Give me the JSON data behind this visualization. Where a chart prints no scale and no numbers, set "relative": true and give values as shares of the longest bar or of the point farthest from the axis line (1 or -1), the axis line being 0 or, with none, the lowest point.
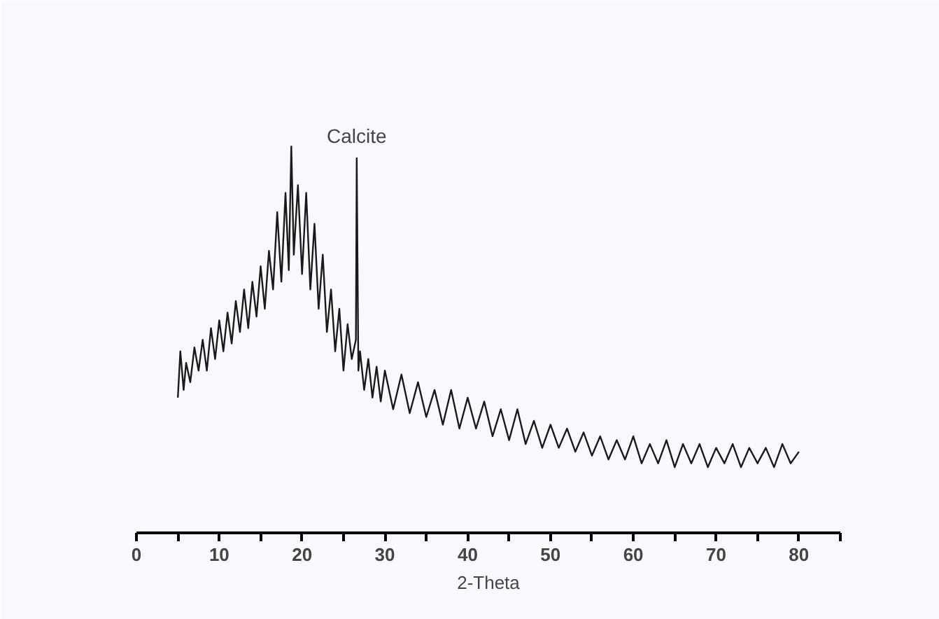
{
  "chart_data": {
    "type": "line",
    "relative": true,
    "xlabel": "2-Theta",
    "xlim": [
      0,
      85
    ],
    "xticks": [
      0,
      {
        "value": 5,
        "label": null
      },
      10,
      {
        "value": 15,
        "label": null
      },
      20,
      {
        "value": 25,
        "label": null
      },
      30,
      {
        "value": 35,
        "label": null
      },
      40,
      {
        "value": 45,
        "label": null
      },
      50,
      {
        "value": 55,
        "label": null
      },
      60,
      {
        "value": 65,
        "label": null
      },
      70,
      {
        "value": 75,
        "label": null
      },
      80,
      {
        "value": 85,
        "label": null
      }
    ],
    "grid": false,
    "marker": "none",
    "line_style": "solid",
    "annotations": [
      {
        "text": "Calcite",
        "x": 26.6,
        "y": 0.97
      }
    ],
    "series": [
      {
        "color": "#1a1a1a",
        "x": [
          5,
          5.3,
          5.7,
          6,
          6.5,
          7,
          7.5,
          8,
          8.5,
          9,
          9.5,
          10,
          10.5,
          11,
          11.5,
          12,
          12.5,
          13,
          13.5,
          14,
          14.5,
          15,
          15.5,
          16,
          16.5,
          17,
          17.5,
          18,
          18.4,
          18.7,
          19,
          19.5,
          20,
          20.5,
          21,
          21.5,
          22,
          22.5,
          23,
          23.5,
          24,
          24.5,
          25,
          25.5,
          26,
          26.5,
          26.6,
          26.8,
          27,
          27.5,
          28,
          28.5,
          29,
          29.5,
          30,
          31,
          32,
          33,
          34,
          35,
          36,
          37,
          38,
          39,
          40,
          41,
          42,
          43,
          44,
          45,
          46,
          47,
          48,
          49,
          50,
          51,
          52,
          53,
          54,
          55,
          56,
          57,
          58,
          59,
          60,
          61,
          62,
          63,
          64,
          65,
          66,
          67,
          68,
          69,
          70,
          71,
          72,
          73,
          74,
          75,
          76,
          77,
          78,
          79,
          80
        ],
        "values": [
          0.35,
          0.47,
          0.37,
          0.44,
          0.39,
          0.48,
          0.42,
          0.5,
          0.42,
          0.53,
          0.45,
          0.55,
          0.47,
          0.57,
          0.49,
          0.6,
          0.52,
          0.63,
          0.53,
          0.65,
          0.56,
          0.69,
          0.58,
          0.73,
          0.63,
          0.83,
          0.65,
          0.88,
          0.68,
          1.0,
          0.72,
          0.9,
          0.67,
          0.88,
          0.63,
          0.8,
          0.58,
          0.72,
          0.52,
          0.63,
          0.47,
          0.58,
          0.42,
          0.54,
          0.45,
          0.5,
          0.97,
          0.42,
          0.47,
          0.37,
          0.45,
          0.35,
          0.43,
          0.34,
          0.42,
          0.32,
          0.41,
          0.31,
          0.39,
          0.3,
          0.37,
          0.28,
          0.37,
          0.27,
          0.35,
          0.27,
          0.34,
          0.25,
          0.32,
          0.24,
          0.32,
          0.23,
          0.29,
          0.22,
          0.28,
          0.22,
          0.27,
          0.21,
          0.26,
          0.2,
          0.25,
          0.19,
          0.24,
          0.19,
          0.25,
          0.18,
          0.23,
          0.18,
          0.24,
          0.17,
          0.23,
          0.18,
          0.23,
          0.17,
          0.22,
          0.18,
          0.23,
          0.17,
          0.22,
          0.18,
          0.22,
          0.17,
          0.23,
          0.18,
          0.21
        ]
      }
    ]
  }
}
